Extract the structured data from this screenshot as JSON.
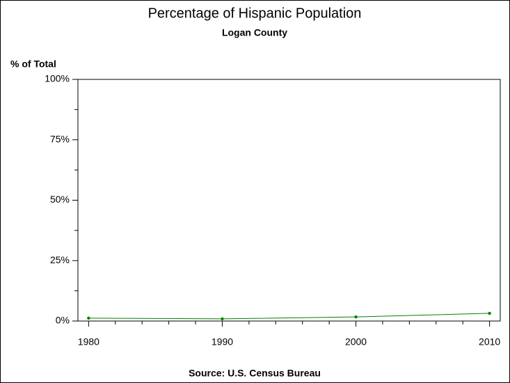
{
  "chart_data": {
    "type": "line",
    "title": "Percentage of Hispanic Population",
    "subtitle": "Logan County",
    "y_label": "% of Total",
    "source": "Source: U.S. Census Bureau",
    "x": [
      1980,
      1990,
      2000,
      2010
    ],
    "series": [
      {
        "name": "Logan County",
        "color": "#008000",
        "values": [
          1.2,
          0.9,
          1.7,
          3.2
        ]
      }
    ],
    "xlim": [
      1979.2,
      2010.8
    ],
    "xticks": [
      1980,
      1990,
      2000,
      2010
    ],
    "x_minor_ticks": [
      1982,
      1984,
      1986,
      1988,
      1992,
      1994,
      1996,
      1998,
      2002,
      2004,
      2006,
      2008
    ],
    "ylim": [
      0,
      100
    ],
    "yticks": [
      {
        "value": 0,
        "label": "0%"
      },
      {
        "value": 25,
        "label": "25%"
      },
      {
        "value": 50,
        "label": "50%"
      },
      {
        "value": 75,
        "label": "75%"
      },
      {
        "value": 100,
        "label": "100%"
      }
    ],
    "y_minor_ticks": [
      12.5,
      37.5,
      62.5,
      87.5
    ]
  }
}
